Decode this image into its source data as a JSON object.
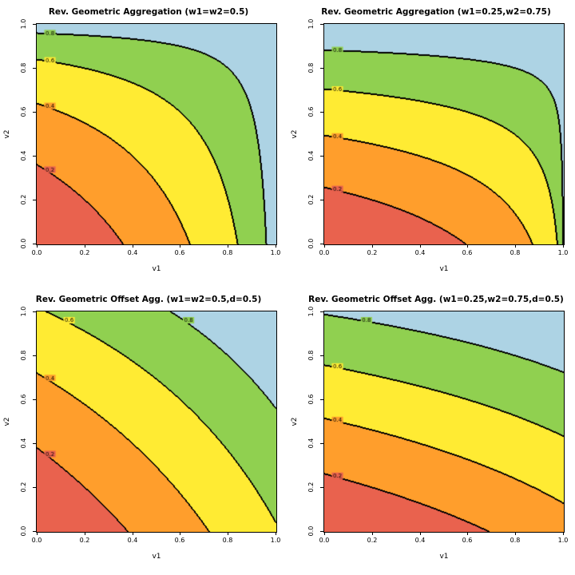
{
  "chart_config": {
    "grid": "2x2",
    "band_colors": [
      "#E9624E",
      "#FF9E2C",
      "#FFEB33",
      "#90D050",
      "#ADD3E4"
    ],
    "contour_color": "#000000",
    "levels": [
      0.2,
      0.4,
      0.6,
      0.8
    ],
    "level_labels": [
      "0.2",
      "0.4",
      "0.6",
      "0.8"
    ],
    "tick_values": [
      0,
      0.2,
      0.4,
      0.6,
      0.8,
      1
    ],
    "tick_labels": [
      "0.0",
      "0.2",
      "0.4",
      "0.6",
      "0.8",
      "1.0"
    ]
  },
  "chart_data": [
    {
      "type": "contour",
      "title": "Rev. Geometric Aggregation (w1=w2=0.5)",
      "xlabel": "v1",
      "ylabel": "v2",
      "xlim": [
        0,
        1
      ],
      "ylim": [
        0,
        1
      ],
      "function": "reverse_geometric",
      "params": {
        "w1": 0.5,
        "w2": 0.5
      },
      "levels": [
        0.2,
        0.4,
        0.6,
        0.8
      ]
    },
    {
      "type": "contour",
      "title": "Rev. Geometric Aggregation (w1=0.25,w2=0.75)",
      "xlabel": "v1",
      "ylabel": "v2",
      "xlim": [
        0,
        1
      ],
      "ylim": [
        0,
        1
      ],
      "function": "reverse_geometric",
      "params": {
        "w1": 0.25,
        "w2": 0.75
      },
      "levels": [
        0.2,
        0.4,
        0.6,
        0.8
      ]
    },
    {
      "type": "contour",
      "title": "Rev. Geometric Offset Agg. (w1=w2=0.5,d=0.5)",
      "xlabel": "v1",
      "ylabel": "v2",
      "xlim": [
        0,
        1
      ],
      "ylim": [
        0,
        1
      ],
      "function": "reverse_geometric_offset",
      "params": {
        "w1": 0.5,
        "w2": 0.5,
        "d": 0.5
      },
      "levels": [
        0.2,
        0.4,
        0.6,
        0.8
      ]
    },
    {
      "type": "contour",
      "title": "Rev. Geometric Offset Agg. (w1=0.25,w2=0.75,d=0.5)",
      "xlabel": "v1",
      "ylabel": "v2",
      "xlim": [
        0,
        1
      ],
      "ylim": [
        0,
        1
      ],
      "function": "reverse_geometric_offset",
      "params": {
        "w1": 0.25,
        "w2": 0.75,
        "d": 0.5
      },
      "levels": [
        0.2,
        0.4,
        0.6,
        0.8
      ]
    }
  ]
}
